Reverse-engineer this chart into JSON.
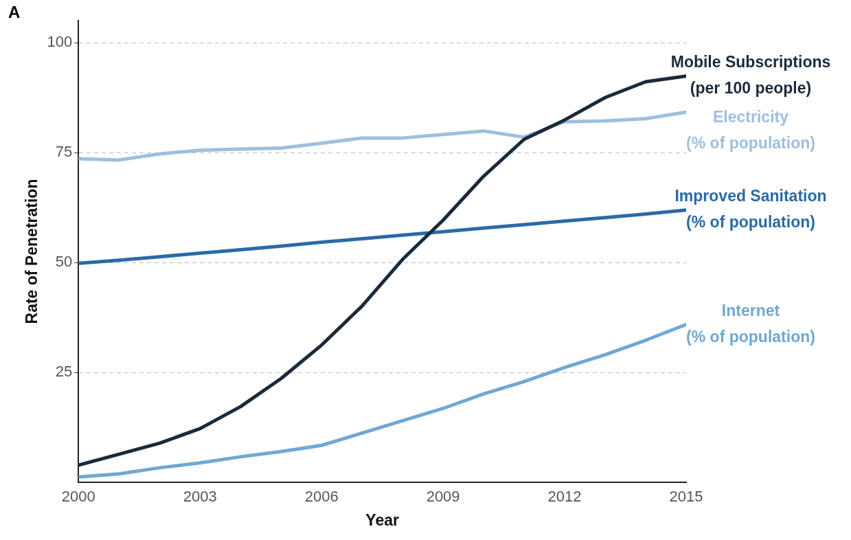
{
  "chart_data": {
    "type": "line",
    "xlabel": "Year",
    "ylabel": "Rate of Penetration",
    "annotations": [
      "A"
    ],
    "x": [
      2000,
      2001,
      2002,
      2003,
      2004,
      2005,
      2006,
      2007,
      2008,
      2009,
      2010,
      2011,
      2012,
      2013,
      2014,
      2015
    ],
    "series": [
      {
        "name": "Mobile Subscriptions (per 100 people)",
        "color": "#1a2a3a",
        "values": [
          3.9,
          6.4,
          8.9,
          12.2,
          17.2,
          23.6,
          31.2,
          40.1,
          50.7,
          59.6,
          69.6,
          78,
          82.4,
          87.5,
          91.1,
          92.4
        ]
      },
      {
        "name": "Electricity (% of population)",
        "color": "#9ebfdf",
        "values": [
          73.6,
          73.3,
          74.7,
          75.5,
          75.8,
          76,
          77.1,
          78.3,
          78.3,
          79.1,
          79.9,
          78.5,
          82,
          82.2,
          82.7,
          84.2
        ]
      },
      {
        "name": "Improved Sanitation (% of population)",
        "color": "#2a6aa8",
        "values": [
          49.8,
          50.5,
          51.3,
          52.1,
          52.9,
          53.7,
          54.6,
          55.4,
          56.2,
          57,
          57.8,
          58.6,
          59.4,
          60.2,
          61,
          61.9
        ]
      },
      {
        "name": "Internet (% of population)",
        "color": "#6fa8d4",
        "values": [
          1.2,
          1.9,
          3.3,
          4.4,
          5.8,
          7,
          8.4,
          11.2,
          14,
          16.8,
          20.1,
          22.9,
          26.1,
          29,
          32.3,
          35.9
        ]
      }
    ],
    "xlim": [
      2000,
      2015
    ],
    "xticks": [
      2000,
      2003,
      2006,
      2009,
      2012,
      2015
    ],
    "ylim": [
      0,
      105
    ],
    "yticks": [
      25,
      50,
      75,
      100
    ],
    "grid": "y",
    "legend": false,
    "marker": "none",
    "line_style": "solid"
  }
}
